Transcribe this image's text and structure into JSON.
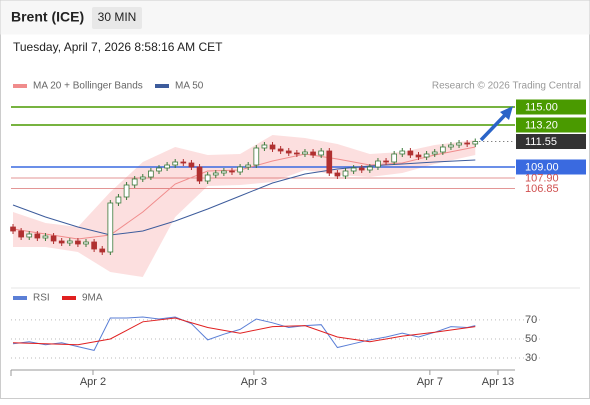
{
  "chart_data": {
    "type": "candlestick",
    "title": "Brent (ICE)",
    "interval": "30 MIN",
    "subtitle": "Tuesday, April 7, 2026 8:58:16 AM CET",
    "source": "Research © 2026 Trading Central",
    "up_color": "#3c7a3c",
    "down_color": "#b03030",
    "ylim": [
      97.2,
      116.2
    ],
    "xlim": [
      -0.25,
      61.9
    ],
    "xticks": [
      {
        "value": 9.86,
        "label": "Apr 2"
      },
      {
        "value": 29.7,
        "label": "Apr 3"
      },
      {
        "value": 51.4,
        "label": "Apr 7"
      },
      {
        "value": 59.8,
        "label": "Apr 13"
      }
    ],
    "candles": {
      "x": [
        0,
        1,
        2,
        3,
        4,
        5,
        6,
        7,
        8,
        9,
        10,
        11,
        12,
        13,
        14,
        15,
        16,
        17,
        18,
        19,
        20,
        21,
        22,
        23,
        24,
        25,
        26,
        27,
        28,
        29,
        30,
        31,
        32,
        33,
        34,
        35,
        36,
        37,
        38,
        39,
        40,
        41,
        42,
        43,
        44,
        45,
        46,
        47,
        48,
        49,
        50,
        51,
        52,
        53,
        54,
        55,
        56,
        57
      ],
      "open": [
        103.0,
        102.6,
        102.0,
        102.3,
        101.9,
        102.1,
        101.6,
        101.4,
        101.6,
        101.3,
        101.5,
        100.8,
        100.5,
        105.4,
        106.0,
        107.2,
        107.8,
        108.0,
        108.6,
        108.9,
        109.2,
        109.5,
        109.4,
        109.0,
        107.6,
        108.2,
        108.4,
        108.6,
        108.5,
        109.0,
        109.2,
        110.9,
        111.2,
        110.8,
        110.6,
        110.4,
        110.3,
        110.5,
        110.2,
        110.6,
        108.4,
        108.1,
        108.6,
        108.9,
        108.7,
        109.0,
        109.6,
        109.5,
        110.3,
        110.6,
        110.2,
        110.0,
        110.3,
        110.5,
        111.0,
        111.2,
        111.4,
        111.3
      ],
      "high": [
        103.3,
        102.9,
        102.6,
        102.6,
        102.4,
        102.4,
        101.9,
        101.9,
        101.9,
        101.8,
        101.8,
        101.1,
        105.7,
        106.3,
        107.5,
        108.1,
        108.3,
        108.9,
        109.2,
        109.5,
        109.8,
        109.8,
        109.7,
        109.3,
        108.5,
        108.7,
        108.9,
        108.9,
        109.3,
        109.5,
        111.2,
        111.5,
        111.5,
        111.1,
        110.9,
        110.7,
        110.8,
        110.8,
        110.9,
        110.9,
        108.7,
        108.9,
        109.2,
        109.2,
        109.3,
        109.9,
        109.9,
        110.6,
        110.9,
        110.9,
        110.5,
        110.6,
        110.8,
        111.3,
        111.5,
        111.7,
        111.7,
        111.85
      ],
      "low": [
        102.3,
        101.7,
        101.7,
        101.6,
        101.6,
        101.3,
        101.1,
        101.1,
        101.0,
        101.0,
        100.5,
        100.2,
        100.2,
        105.1,
        105.7,
        106.9,
        107.5,
        107.7,
        108.3,
        108.6,
        108.9,
        109.1,
        108.7,
        107.3,
        107.3,
        107.9,
        108.1,
        108.2,
        108.2,
        108.7,
        108.9,
        110.6,
        110.5,
        110.3,
        110.1,
        110.0,
        110.0,
        109.9,
        109.9,
        108.1,
        107.8,
        107.8,
        108.3,
        108.4,
        108.4,
        108.7,
        109.2,
        109.2,
        110.0,
        109.9,
        109.7,
        109.7,
        110.0,
        110.2,
        110.7,
        110.9,
        111.0,
        111.0
      ],
      "close": [
        102.6,
        102.0,
        102.3,
        101.9,
        102.1,
        101.6,
        101.4,
        101.6,
        101.3,
        101.5,
        100.8,
        100.5,
        105.4,
        106.0,
        107.2,
        107.8,
        108.0,
        108.6,
        108.9,
        109.2,
        109.5,
        109.4,
        109.0,
        107.6,
        108.2,
        108.4,
        108.6,
        108.5,
        109.0,
        109.2,
        110.9,
        111.2,
        110.8,
        110.6,
        110.4,
        110.3,
        110.5,
        110.2,
        110.6,
        108.4,
        108.1,
        108.6,
        108.9,
        108.7,
        109.0,
        109.6,
        109.5,
        110.3,
        110.6,
        110.2,
        110.0,
        110.3,
        110.5,
        111.0,
        111.2,
        111.4,
        111.3,
        111.55
      ]
    },
    "ma20": {
      "name": "MA 20 + Bollinger Bands",
      "color": "#f08c8c",
      "band_color": "#fbd9d9",
      "x": [
        0,
        4,
        8,
        12,
        16,
        20,
        24,
        28,
        32,
        36,
        40,
        44,
        48,
        52,
        57
      ],
      "values": [
        102.8,
        102.3,
        101.8,
        102.2,
        104.5,
        107.3,
        108.6,
        108.7,
        109.6,
        110.3,
        109.8,
        109.2,
        109.4,
        110.2,
        111.0
      ],
      "upper": [
        104.5,
        103.4,
        103.0,
        106.5,
        109.5,
        111.0,
        110.2,
        110.3,
        112.2,
        111.9,
        111.3,
        110.3,
        110.5,
        111.2,
        111.7
      ],
      "lower": [
        101.0,
        101.0,
        100.5,
        98.5,
        98.0,
        104.0,
        107.1,
        107.2,
        107.5,
        108.7,
        108.2,
        108.0,
        108.4,
        109.3,
        110.2
      ]
    },
    "ma50": {
      "name": "MA 50",
      "color": "#3d5c9c",
      "x": [
        0,
        4,
        8,
        12,
        16,
        20,
        24,
        28,
        32,
        36,
        40,
        44,
        48,
        52,
        57
      ],
      "values": [
        105.2,
        104.0,
        103.0,
        102.2,
        102.6,
        103.6,
        104.8,
        106.1,
        107.4,
        108.3,
        108.8,
        109.1,
        109.3,
        109.5,
        109.7
      ]
    },
    "levels": [
      {
        "value": 115.0,
        "label": "115.00",
        "color": "#4a9a00",
        "box": true
      },
      {
        "value": 113.2,
        "label": "113.20",
        "color": "#4a9a00",
        "box": true
      },
      {
        "value": 111.55,
        "label": "111.55",
        "color": "#333333",
        "box": true
      },
      {
        "value": 109.0,
        "label": "109.00",
        "color": "#3a6ae0",
        "box": true
      },
      {
        "value": 107.9,
        "label": "107.90",
        "color": "#d05050",
        "box": false
      },
      {
        "value": 106.85,
        "label": "106.85",
        "color": "#d05050",
        "box": false
      }
    ],
    "rsi": {
      "ylim": [
        19.5,
        82.5
      ],
      "yticks": [
        30,
        50,
        70
      ],
      "series": [
        {
          "name": "RSI",
          "color": "#5b7fd6",
          "x": [
            0,
            2,
            4,
            6,
            8,
            10,
            12,
            14,
            16,
            18,
            20,
            22,
            24,
            26,
            28,
            30,
            32,
            34,
            36,
            38,
            40,
            42,
            44,
            46,
            48,
            50,
            52,
            54,
            56,
            57
          ],
          "values": [
            45,
            47,
            44,
            46,
            42,
            38,
            72,
            72,
            73,
            71,
            73,
            66,
            49,
            55,
            60,
            71,
            67,
            62,
            64,
            65,
            41,
            45,
            49,
            52,
            56,
            52,
            57,
            63,
            62,
            64
          ]
        },
        {
          "name": "9MA",
          "color": "#e02020",
          "x": [
            0,
            4,
            8,
            12,
            16,
            20,
            24,
            28,
            32,
            36,
            40,
            44,
            48,
            52,
            57
          ],
          "values": [
            46,
            45,
            44,
            50,
            68,
            72,
            62,
            56,
            63,
            64,
            52,
            47,
            53,
            57,
            63
          ]
        }
      ]
    }
  }
}
